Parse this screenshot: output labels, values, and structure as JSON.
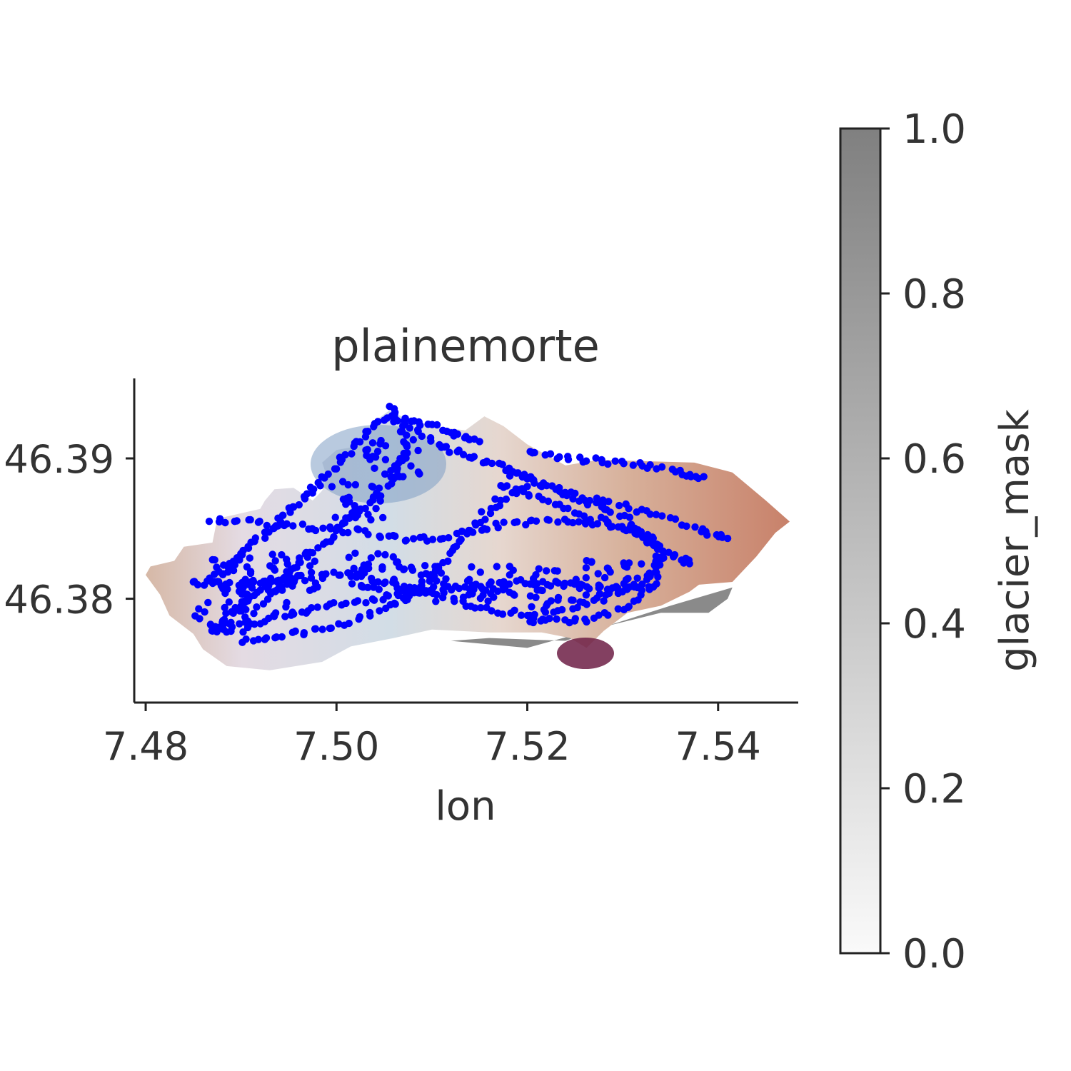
{
  "chart_data": {
    "type": "scatter",
    "title": "plainemorte",
    "xlabel": "lon",
    "ylabel": "",
    "xlim": [
      7.4788,
      7.5484
    ],
    "ylim": [
      46.3726,
      46.3957
    ],
    "x_ticks": [
      {
        "value": 7.48,
        "label": "7.48"
      },
      {
        "value": 7.5,
        "label": "7.50"
      },
      {
        "value": 7.52,
        "label": "7.52"
      },
      {
        "value": 7.54,
        "label": "7.54"
      }
    ],
    "y_ticks": [
      {
        "value": 46.38,
        "label": "46.38"
      },
      {
        "value": 46.39,
        "label": "46.39"
      }
    ],
    "grid": false,
    "colorbar": {
      "label": "glacier_mask",
      "range": [
        0.0,
        1.0
      ],
      "colors": [
        "#fafafa",
        "#808080"
      ],
      "ticks": [
        {
          "value": 0.0,
          "label": "0.0"
        },
        {
          "value": 0.2,
          "label": "0.2"
        },
        {
          "value": 0.4,
          "label": "0.4"
        },
        {
          "value": 0.6,
          "label": "0.6"
        },
        {
          "value": 0.8,
          "label": "0.8"
        },
        {
          "value": 1.0,
          "label": "1.0"
        }
      ]
    },
    "glacier_outline_lonlat": [
      [
        7.48,
        46.3817
      ],
      [
        7.4805,
        46.3823
      ],
      [
        7.483,
        46.3827
      ],
      [
        7.484,
        46.3837
      ],
      [
        7.487,
        46.384
      ],
      [
        7.4875,
        46.3857
      ],
      [
        7.492,
        46.3864
      ],
      [
        7.4925,
        46.387
      ],
      [
        7.4935,
        46.3878
      ],
      [
        7.4955,
        46.3879
      ],
      [
        7.4975,
        46.387
      ],
      [
        7.4985,
        46.3877
      ],
      [
        7.499,
        46.3887
      ],
      [
        7.4985,
        46.3897
      ],
      [
        7.5,
        46.3906
      ],
      [
        7.5025,
        46.3909
      ],
      [
        7.5045,
        46.3929
      ],
      [
        7.5055,
        46.3934
      ],
      [
        7.5075,
        46.3928
      ],
      [
        7.51,
        46.3923
      ],
      [
        7.5135,
        46.392
      ],
      [
        7.5155,
        46.393
      ],
      [
        7.5175,
        46.3923
      ],
      [
        7.52,
        46.391
      ],
      [
        7.524,
        46.3895
      ],
      [
        7.5275,
        46.3899
      ],
      [
        7.5325,
        46.3898
      ],
      [
        7.5375,
        46.3897
      ],
      [
        7.5415,
        46.389
      ],
      [
        7.545,
        46.387
      ],
      [
        7.5475,
        46.3855
      ],
      [
        7.546,
        46.3847
      ],
      [
        7.544,
        46.383
      ],
      [
        7.5415,
        46.3812
      ],
      [
        7.538,
        46.381
      ],
      [
        7.537,
        46.3805
      ],
      [
        7.534,
        46.3795
      ],
      [
        7.5305,
        46.379
      ],
      [
        7.528,
        46.3777
      ],
      [
        7.5262,
        46.3765
      ],
      [
        7.5245,
        46.3772
      ],
      [
        7.5215,
        46.3776
      ],
      [
        7.516,
        46.3776
      ],
      [
        7.51,
        46.3778
      ],
      [
        7.506,
        46.3772
      ],
      [
        7.5015,
        46.3766
      ],
      [
        7.4985,
        46.3755
      ],
      [
        7.493,
        46.3749
      ],
      [
        7.4885,
        46.3752
      ],
      [
        7.486,
        46.3764
      ],
      [
        7.485,
        46.3775
      ],
      [
        7.4825,
        46.3788
      ],
      [
        7.4815,
        46.3803
      ]
    ],
    "shadow_outline_lonlat": [
      [
        7.512,
        46.377
      ],
      [
        7.52,
        46.3765
      ],
      [
        7.528,
        46.378
      ],
      [
        7.534,
        46.379
      ],
      [
        7.539,
        46.379
      ],
      [
        7.541,
        46.38
      ],
      [
        7.5415,
        46.3808
      ],
      [
        7.535,
        46.3795
      ],
      [
        7.529,
        46.3782
      ],
      [
        7.524,
        46.377
      ],
      [
        7.516,
        46.3772
      ]
    ],
    "point_color": "#0000ff",
    "tracks_lonlat": [
      [
        [
          7.5055,
          46.3937
        ],
        [
          7.507,
          46.392
        ],
        [
          7.5072,
          46.3903
        ],
        [
          7.506,
          46.3888
        ],
        [
          7.504,
          46.3872
        ],
        [
          7.5015,
          46.3858
        ],
        [
          7.4995,
          46.3844
        ],
        [
          7.497,
          46.3831
        ],
        [
          7.495,
          46.3818
        ],
        [
          7.4925,
          46.3808
        ],
        [
          7.4905,
          46.38
        ],
        [
          7.4885,
          46.3787
        ],
        [
          7.487,
          46.3777
        ]
      ],
      [
        [
          7.5055,
          46.3932
        ],
        [
          7.503,
          46.3918
        ],
        [
          7.501,
          46.3903
        ],
        [
          7.499,
          46.3888
        ],
        [
          7.497,
          46.3874
        ],
        [
          7.495,
          46.3862
        ],
        [
          7.493,
          46.385
        ],
        [
          7.491,
          46.3838
        ],
        [
          7.489,
          46.3826
        ],
        [
          7.4872,
          46.3812
        ]
      ],
      [
        [
          7.506,
          46.393
        ],
        [
          7.5095,
          46.3924
        ],
        [
          7.5125,
          46.3918
        ],
        [
          7.515,
          46.3912
        ]
      ],
      [
        [
          7.507,
          46.3927
        ],
        [
          7.51,
          46.3912
        ],
        [
          7.513,
          46.3903
        ],
        [
          7.516,
          46.3897
        ],
        [
          7.519,
          46.389
        ],
        [
          7.5215,
          46.388
        ]
      ],
      [
        [
          7.52,
          46.3905
        ],
        [
          7.524,
          46.39
        ],
        [
          7.528,
          46.3898
        ],
        [
          7.532,
          46.3895
        ],
        [
          7.536,
          46.389
        ],
        [
          7.5385,
          46.3887
        ]
      ],
      [
        [
          7.518,
          46.389
        ],
        [
          7.522,
          46.388
        ],
        [
          7.526,
          46.3872
        ],
        [
          7.53,
          46.3866
        ],
        [
          7.534,
          46.3858
        ],
        [
          7.5385,
          46.3848
        ],
        [
          7.541,
          46.3843
        ]
      ],
      [
        [
          7.517,
          46.3882
        ],
        [
          7.521,
          46.3872
        ],
        [
          7.525,
          46.3862
        ],
        [
          7.5295,
          46.3852
        ],
        [
          7.533,
          46.384
        ],
        [
          7.5355,
          46.383
        ],
        [
          7.537,
          46.3825
        ]
      ],
      [
        [
          7.487,
          46.3857
        ],
        [
          7.491,
          46.3855
        ],
        [
          7.495,
          46.3852
        ],
        [
          7.499,
          46.385
        ],
        [
          7.503,
          46.3847
        ],
        [
          7.507,
          46.3843
        ],
        [
          7.511,
          46.3842
        ],
        [
          7.515,
          46.385
        ],
        [
          7.519,
          46.3854
        ],
        [
          7.523,
          46.3855
        ],
        [
          7.527,
          46.3854
        ],
        [
          7.531,
          46.385
        ],
        [
          7.5335,
          46.384
        ],
        [
          7.534,
          46.3825
        ],
        [
          7.532,
          46.381
        ],
        [
          7.528,
          46.38
        ],
        [
          7.524,
          46.3793
        ],
        [
          7.52,
          46.3789
        ],
        [
          7.516,
          46.3792
        ],
        [
          7.512,
          46.38
        ],
        [
          7.508,
          46.3808
        ],
        [
          7.504,
          46.3814
        ],
        [
          7.5,
          46.3818
        ],
        [
          7.496,
          46.3816
        ],
        [
          7.492,
          46.3812
        ],
        [
          7.488,
          46.381
        ],
        [
          7.485,
          46.3812
        ]
      ],
      [
        [
          7.488,
          46.378
        ],
        [
          7.492,
          46.3784
        ],
        [
          7.496,
          46.379
        ],
        [
          7.5,
          46.3796
        ],
        [
          7.504,
          46.38
        ],
        [
          7.508,
          46.3805
        ],
        [
          7.512,
          46.3808
        ],
        [
          7.516,
          46.381
        ],
        [
          7.52,
          46.3812
        ],
        [
          7.524,
          46.381
        ],
        [
          7.528,
          46.3808
        ],
        [
          7.532,
          46.3806
        ]
      ],
      [
        [
          7.52,
          46.3785
        ],
        [
          7.523,
          46.3784
        ],
        [
          7.527,
          46.3786
        ],
        [
          7.531,
          46.3796
        ],
        [
          7.5335,
          46.3812
        ],
        [
          7.534,
          46.383
        ],
        [
          7.5325,
          46.3846
        ],
        [
          7.5295,
          46.386
        ],
        [
          7.526,
          46.387
        ],
        [
          7.523,
          46.3878
        ]
      ],
      [
        [
          7.49,
          46.377
        ],
        [
          7.494,
          46.3774
        ],
        [
          7.498,
          46.3778
        ],
        [
          7.502,
          46.3784
        ],
        [
          7.506,
          46.3796
        ],
        [
          7.509,
          46.381
        ],
        [
          7.511,
          46.3824
        ],
        [
          7.513,
          46.384
        ],
        [
          7.515,
          46.3856
        ],
        [
          7.517,
          46.387
        ],
        [
          7.52,
          46.388
        ]
      ]
    ],
    "cluster_centers_lonlat": [
      [
        7.489,
        46.3815
      ],
      [
        7.496,
        46.3818
      ],
      [
        7.504,
        46.382
      ],
      [
        7.509,
        46.3812
      ],
      [
        7.516,
        46.381
      ],
      [
        7.523,
        46.3808
      ],
      [
        7.529,
        46.3815
      ],
      [
        7.506,
        46.39
      ],
      [
        7.502,
        46.387
      ],
      [
        7.493,
        46.38
      ],
      [
        7.488,
        46.379
      ]
    ]
  }
}
